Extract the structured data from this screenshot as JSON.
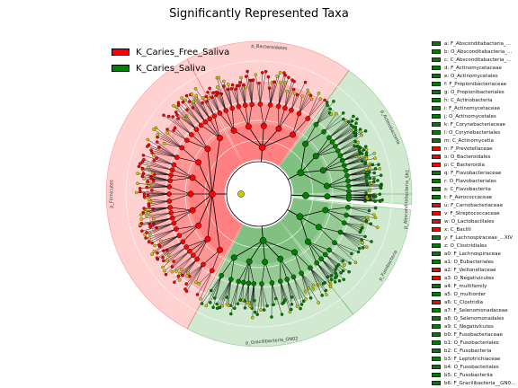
{
  "chart_data": {
    "type": "cladogram",
    "title": "Significantly Represented Taxa",
    "colors": {
      "K_Caries_Free_Saliva": "#ff0000",
      "K_Caries_Saliva": "#008000"
    },
    "legend": [
      {
        "name": "K_Caries_Free_Saliva",
        "color": "#ff0000"
      },
      {
        "name": "K_Caries_Saliva",
        "color": "#008000"
      }
    ],
    "sectors": [
      {
        "label": "p_Bacteroidetes",
        "group": "K_Caries_Free_Saliva",
        "color": "#ff0000"
      },
      {
        "label": "p_Actinobacteria",
        "group": "K_Caries_Saliva",
        "color": "#008000"
      },
      {
        "label": "p_Absconditabacteria_SR1",
        "group": "K_Caries_Saliva",
        "color": "#008000"
      },
      {
        "label": "p_Fusobacteria",
        "group": "K_Caries_Saliva",
        "color": "#008000"
      },
      {
        "label": "p_Gracilibacteria_GN02",
        "group": "K_Caries_Saliva",
        "color": "#008000"
      },
      {
        "label": "p_Firmicutes",
        "group": "K_Caries_Free_Saliva",
        "color": "#ff0000"
      }
    ],
    "taxa": [
      {
        "label": "a: F_Absconditabacteria_...",
        "group": "K_Caries_Saliva"
      },
      {
        "label": "b: O_Absconditabacteria_...",
        "group": "K_Caries_Saliva"
      },
      {
        "label": "c: C_Absconditabacteria_...",
        "group": "K_Caries_Saliva"
      },
      {
        "label": "d: F_Actinomycetaceae",
        "group": "K_Caries_Saliva"
      },
      {
        "label": "e: O_Actinomycetales",
        "group": "K_Caries_Saliva"
      },
      {
        "label": "f: F_Propionibacteriaceae",
        "group": "K_Caries_Saliva"
      },
      {
        "label": "g: O_Propionibacteriales",
        "group": "K_Caries_Saliva"
      },
      {
        "label": "h: C_Actinobacteria",
        "group": "K_Caries_Saliva"
      },
      {
        "label": "i: F_Actinomycetaceae",
        "group": "K_Caries_Saliva"
      },
      {
        "label": "j: O_Actinomycetales",
        "group": "K_Caries_Saliva"
      },
      {
        "label": "k: F_Corynebacteriaceae",
        "group": "K_Caries_Saliva"
      },
      {
        "label": "l: O_Corynebacteriales",
        "group": "K_Caries_Saliva"
      },
      {
        "label": "m: C_Actinomycetia",
        "group": "K_Caries_Saliva"
      },
      {
        "label": "n: F_Prevotellaceae",
        "group": "K_Caries_Free_Saliva"
      },
      {
        "label": "o: O_Bacteroidales",
        "group": "K_Caries_Free_Saliva"
      },
      {
        "label": "p: C_Bacteroidia",
        "group": "K_Caries_Free_Saliva"
      },
      {
        "label": "q: F_Flavobacteriaceae",
        "group": "K_Caries_Saliva"
      },
      {
        "label": "r: O_Flavobacteriales",
        "group": "K_Caries_Saliva"
      },
      {
        "label": "s: C_Flavobacteriia",
        "group": "K_Caries_Saliva"
      },
      {
        "label": "t: F_Aerococcaceae",
        "group": "K_Caries_Saliva"
      },
      {
        "label": "u: F_Carnobacteriaceae",
        "group": "K_Caries_Free_Saliva"
      },
      {
        "label": "v: F_Streptococcaceae",
        "group": "K_Caries_Free_Saliva"
      },
      {
        "label": "w: O_Lactobacillales",
        "group": "K_Caries_Free_Saliva"
      },
      {
        "label": "x: C_Bacilli",
        "group": "K_Caries_Free_Saliva"
      },
      {
        "label": "y: F_Lachnospiraceae_...XIV",
        "group": "K_Caries_Saliva"
      },
      {
        "label": "z: O_Clostridiales",
        "group": "K_Caries_Saliva"
      },
      {
        "label": "a0: F_Lachnospiraceae",
        "group": "K_Caries_Saliva"
      },
      {
        "label": "a1: O_Eubacteriales",
        "group": "K_Caries_Saliva"
      },
      {
        "label": "a2: F_Veillonellaceae",
        "group": "K_Caries_Free_Saliva"
      },
      {
        "label": "a3: O_Negativicutes",
        "group": "K_Caries_Free_Saliva"
      },
      {
        "label": "a4: F_multifamily",
        "group": "K_Caries_Saliva"
      },
      {
        "label": "a5: O_multiorder",
        "group": "K_Caries_Saliva"
      },
      {
        "label": "a6: C_Clostridia",
        "group": "K_Caries_Free_Saliva"
      },
      {
        "label": "a7: F_Selenomonadaceae",
        "group": "K_Caries_Saliva"
      },
      {
        "label": "a8: O_Selenomonadales",
        "group": "K_Caries_Saliva"
      },
      {
        "label": "a9: C_Negativicutes",
        "group": "K_Caries_Saliva"
      },
      {
        "label": "b0: F_Fusobacteriaceae",
        "group": "K_Caries_Saliva"
      },
      {
        "label": "b1: O_Fusobacteriales",
        "group": "K_Caries_Saliva"
      },
      {
        "label": "b2: C_Fusobacteria",
        "group": "K_Caries_Saliva"
      },
      {
        "label": "b3: F_Leptotrichiaceae",
        "group": "K_Caries_Saliva"
      },
      {
        "label": "b4: O_Fusobacteriales",
        "group": "K_Caries_Saliva"
      },
      {
        "label": "b5: C_Fusobacteriia",
        "group": "K_Caries_Saliva"
      },
      {
        "label": "b6: F_Gracilibacteria__GN0...",
        "group": "K_Caries_Saliva"
      },
      {
        "label": "b7: O_Gracilibacteria__GN...",
        "group": "K_Caries_Saliva"
      }
    ]
  }
}
